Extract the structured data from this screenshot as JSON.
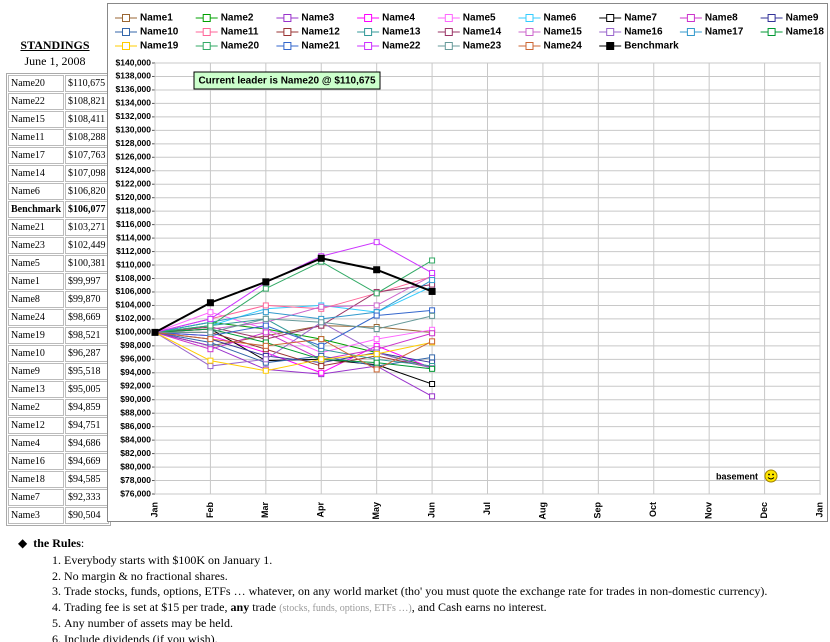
{
  "standings": {
    "title": "STANDINGS",
    "date": "June 1, 2008",
    "rows": [
      [
        "Name20",
        "$110,675"
      ],
      [
        "Name22",
        "$108,821"
      ],
      [
        "Name15",
        "$108,411"
      ],
      [
        "Name11",
        "$108,288"
      ],
      [
        "Name17",
        "$107,763"
      ],
      [
        "Name14",
        "$107,098"
      ],
      [
        "Name6",
        "$106,820"
      ],
      [
        "Benchmark",
        "$106,077"
      ],
      [
        "Name21",
        "$103,271"
      ],
      [
        "Name23",
        "$102,449"
      ],
      [
        "Name5",
        "$100,381"
      ],
      [
        "Name1",
        "$99,997"
      ],
      [
        "Name8",
        "$99,870"
      ],
      [
        "Name24",
        "$98,669"
      ],
      [
        "Name19",
        "$98,521"
      ],
      [
        "Name10",
        "$96,287"
      ],
      [
        "Name9",
        "$95,518"
      ],
      [
        "Name13",
        "$95,005"
      ],
      [
        "Name2",
        "$94,859"
      ],
      [
        "Name12",
        "$94,751"
      ],
      [
        "Name4",
        "$94,686"
      ],
      [
        "Name16",
        "$94,669"
      ],
      [
        "Name18",
        "$94,585"
      ],
      [
        "Name7",
        "$92,333"
      ],
      [
        "Name3",
        "$90,504"
      ]
    ]
  },
  "chart_data": {
    "type": "line",
    "categories": [
      "Jan",
      "Feb",
      "Mar",
      "Apr",
      "May",
      "Jun",
      "Jul",
      "Aug",
      "Sep",
      "Oct",
      "Nov",
      "Dec",
      "Jan"
    ],
    "ylim": [
      76000,
      140000
    ],
    "yticks": [
      {
        "value": 76000,
        "label": "$76,000"
      },
      {
        "value": 78000,
        "label": "$78,000"
      },
      {
        "value": 80000,
        "label": "$80,000"
      },
      {
        "value": 82000,
        "label": "$82,000"
      },
      {
        "value": 84000,
        "label": "$84,000"
      },
      {
        "value": 86000,
        "label": "$86,000"
      },
      {
        "value": 88000,
        "label": "$88,000"
      },
      {
        "value": 90000,
        "label": "$90,000"
      },
      {
        "value": 92000,
        "label": "$92,000"
      },
      {
        "value": 94000,
        "label": "$94,000"
      },
      {
        "value": 96000,
        "label": "$96,000"
      },
      {
        "value": 98000,
        "label": "$98,000"
      },
      {
        "value": 100000,
        "label": "$100,000"
      },
      {
        "value": 102000,
        "label": "$102,000"
      },
      {
        "value": 104000,
        "label": "$104,000"
      },
      {
        "value": 106000,
        "label": "$106,000"
      },
      {
        "value": 108000,
        "label": "$108,000"
      },
      {
        "value": 110000,
        "label": "$110,000"
      },
      {
        "value": 112000,
        "label": "$112,000"
      },
      {
        "value": 114000,
        "label": "$114,000"
      },
      {
        "value": 116000,
        "label": "$116,000"
      },
      {
        "value": 118000,
        "label": "$118,000"
      },
      {
        "value": 120000,
        "label": "$120,000"
      },
      {
        "value": 122000,
        "label": "$122,000"
      },
      {
        "value": 124000,
        "label": "$124,000"
      },
      {
        "value": 126000,
        "label": "$126,000"
      },
      {
        "value": 128000,
        "label": "$128,000"
      },
      {
        "value": 130000,
        "label": "$130,000"
      },
      {
        "value": 132000,
        "label": "$132,000"
      },
      {
        "value": 134000,
        "label": "$134,000"
      },
      {
        "value": 136000,
        "label": "$136,000"
      },
      {
        "value": 138000,
        "label": "$138,000"
      },
      {
        "value": 140000,
        "label": "$140,000"
      }
    ],
    "grid": true,
    "annotation": "Current leader is Name20 @ $110,675",
    "note": "basement",
    "series": [
      {
        "name": "Name1",
        "color": "#996633",
        "values": [
          100000,
          98000,
          99500,
          101000,
          100800,
          99997,
          null,
          null,
          null,
          null,
          null,
          null,
          null
        ]
      },
      {
        "name": "Name2",
        "color": "#00a000",
        "values": [
          100000,
          101500,
          100500,
          99000,
          97000,
          94859,
          null,
          null,
          null,
          null,
          null,
          null,
          null
        ]
      },
      {
        "name": "Name3",
        "color": "#9933cc",
        "values": [
          100000,
          98000,
          94500,
          93800,
          95000,
          90504,
          null,
          null,
          null,
          null,
          null,
          null,
          null
        ]
      },
      {
        "name": "Name4",
        "color": "#ff00ff",
        "values": [
          100000,
          99500,
          97000,
          94000,
          98000,
          94686,
          null,
          null,
          null,
          null,
          null,
          null,
          null
        ]
      },
      {
        "name": "Name5",
        "color": "#ff66ff",
        "values": [
          100000,
          103000,
          100500,
          97000,
          99000,
          100381,
          null,
          null,
          null,
          null,
          null,
          null,
          null
        ]
      },
      {
        "name": "Name6",
        "color": "#33ccff",
        "values": [
          100000,
          101000,
          103500,
          104000,
          103000,
          106820,
          null,
          null,
          null,
          null,
          null,
          null,
          null
        ]
      },
      {
        "name": "Name7",
        "color": "#000000",
        "values": [
          100000,
          100500,
          95800,
          96000,
          95200,
          92333,
          null,
          null,
          null,
          null,
          null,
          null,
          null
        ]
      },
      {
        "name": "Name8",
        "color": "#cc33cc",
        "values": [
          100000,
          97500,
          100000,
          96000,
          97500,
          99870,
          null,
          null,
          null,
          null,
          null,
          null,
          null
        ]
      },
      {
        "name": "Name9",
        "color": "#333399",
        "values": [
          100000,
          99000,
          96500,
          95500,
          97000,
          95518,
          null,
          null,
          null,
          null,
          null,
          null,
          null
        ]
      },
      {
        "name": "Name10",
        "color": "#3366aa",
        "values": [
          100000,
          98500,
          95500,
          96500,
          95000,
          96287,
          null,
          null,
          null,
          null,
          null,
          null,
          null
        ]
      },
      {
        "name": "Name11",
        "color": "#ff6699",
        "values": [
          100000,
          102000,
          104000,
          103500,
          105800,
          108288,
          null,
          null,
          null,
          null,
          null,
          null,
          null
        ]
      },
      {
        "name": "Name12",
        "color": "#993333",
        "values": [
          100000,
          100000,
          97500,
          95000,
          96500,
          94751,
          null,
          null,
          null,
          null,
          null,
          null,
          null
        ]
      },
      {
        "name": "Name13",
        "color": "#339999",
        "values": [
          100000,
          101000,
          102000,
          97500,
          96000,
          95005,
          null,
          null,
          null,
          null,
          null,
          null,
          null
        ]
      },
      {
        "name": "Name14",
        "color": "#993366",
        "values": [
          100000,
          100800,
          99000,
          101000,
          106000,
          107098,
          null,
          null,
          null,
          null,
          null,
          null,
          null
        ]
      },
      {
        "name": "Name15",
        "color": "#cc66cc",
        "values": [
          100000,
          100500,
          101500,
          103800,
          104000,
          108411,
          null,
          null,
          null,
          null,
          null,
          null,
          null
        ]
      },
      {
        "name": "Name16",
        "color": "#9966cc",
        "values": [
          100000,
          95000,
          96000,
          101500,
          97000,
          94669,
          null,
          null,
          null,
          null,
          null,
          null,
          null
        ]
      },
      {
        "name": "Name17",
        "color": "#3399cc",
        "values": [
          100000,
          101500,
          103000,
          102000,
          103000,
          107763,
          null,
          null,
          null,
          null,
          null,
          null,
          null
        ]
      },
      {
        "name": "Name18",
        "color": "#009933",
        "values": [
          100000,
          100500,
          98500,
          96000,
          95500,
          94585,
          null,
          null,
          null,
          null,
          null,
          null,
          null
        ]
      },
      {
        "name": "Name19",
        "color": "#ffcc00",
        "values": [
          100000,
          95800,
          94300,
          96000,
          96800,
          98521,
          null,
          null,
          null,
          null,
          null,
          null,
          null
        ]
      },
      {
        "name": "Name20",
        "color": "#33aa66",
        "values": [
          100000,
          101000,
          106500,
          110500,
          105800,
          110675,
          null,
          null,
          null,
          null,
          null,
          null,
          null
        ]
      },
      {
        "name": "Name21",
        "color": "#3366cc",
        "values": [
          100000,
          99500,
          101000,
          98000,
          102500,
          103271,
          null,
          null,
          null,
          null,
          null,
          null,
          null
        ]
      },
      {
        "name": "Name22",
        "color": "#cc33ff",
        "values": [
          100000,
          102000,
          107400,
          111300,
          113400,
          108821,
          null,
          null,
          null,
          null,
          null,
          null,
          null
        ]
      },
      {
        "name": "Name23",
        "color": "#669999",
        "values": [
          100000,
          100000,
          102000,
          101500,
          100500,
          102449,
          null,
          null,
          null,
          null,
          null,
          null,
          null
        ]
      },
      {
        "name": "Name24",
        "color": "#cc6633",
        "values": [
          100000,
          99000,
          98000,
          99000,
          94500,
          98669,
          null,
          null,
          null,
          null,
          null,
          null,
          null
        ]
      },
      {
        "name": "Benchmark",
        "color": "#000000",
        "values": [
          100000,
          104400,
          107500,
          111000,
          109300,
          106077,
          null,
          null,
          null,
          null,
          null,
          null,
          null
        ]
      }
    ]
  },
  "rules": {
    "title": "the Rules",
    "items": [
      "Everybody starts with $100K on January 1.",
      "No margin & no fractional shares.",
      "Trade stocks, funds, options, ETFs … whatever, on any world market (tho' you must quote the exchange rate for trades in non-domestic currency).",
      {
        "before": "Trading fee is set at $15 per trade, ",
        "bold": "any",
        "middle": " trade ",
        "muted": "(stocks, funds, options, ETFs …)",
        "after": ", and Cash earns no interest."
      },
      "Any number of assets may be held.",
      "Include dividends (if you wish)."
    ]
  }
}
